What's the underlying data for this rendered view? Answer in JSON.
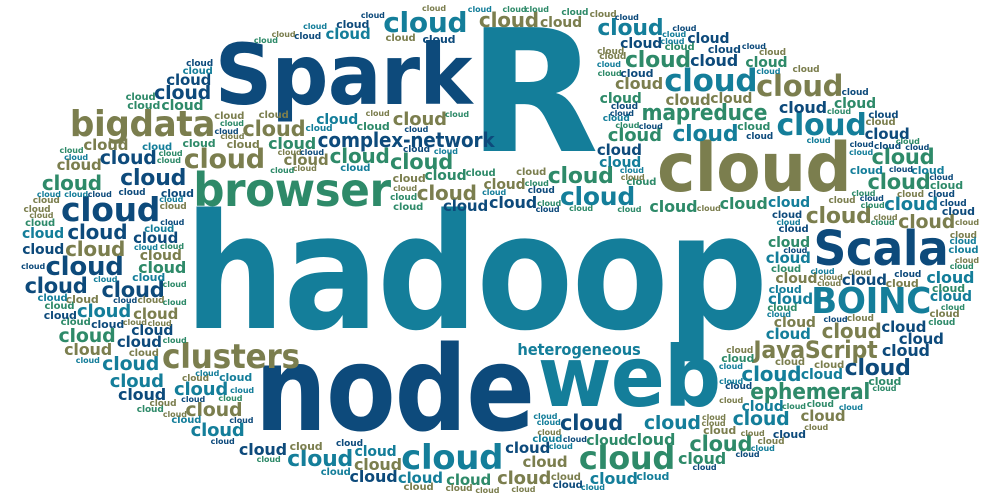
{
  "palette": {
    "navy": "#0d4a7b",
    "teal": "#147e9a",
    "green": "#2e8a69",
    "olive": "#7b7e4e"
  },
  "main_words": [
    {
      "text": "hadoop",
      "color": "teal"
    },
    {
      "text": "R",
      "color": "teal"
    },
    {
      "text": "node",
      "color": "navy"
    },
    {
      "text": "Spark",
      "color": "navy"
    },
    {
      "text": "cloud",
      "color": "olive"
    },
    {
      "text": "web",
      "color": "teal"
    },
    {
      "text": "browser",
      "color": "green"
    },
    {
      "text": "Scala",
      "color": "navy"
    },
    {
      "text": "BOINC",
      "color": "teal"
    },
    {
      "text": "bigdata",
      "color": "olive"
    },
    {
      "text": "clusters",
      "color": "olive"
    },
    {
      "text": "complex-network",
      "color": "navy"
    },
    {
      "text": "mapreduce",
      "color": "green"
    },
    {
      "text": "JavaScript",
      "color": "olive"
    },
    {
      "text": "ephemeral",
      "color": "green"
    },
    {
      "text": "heterogeneous",
      "color": "teal"
    }
  ],
  "filler_word": "cloud"
}
